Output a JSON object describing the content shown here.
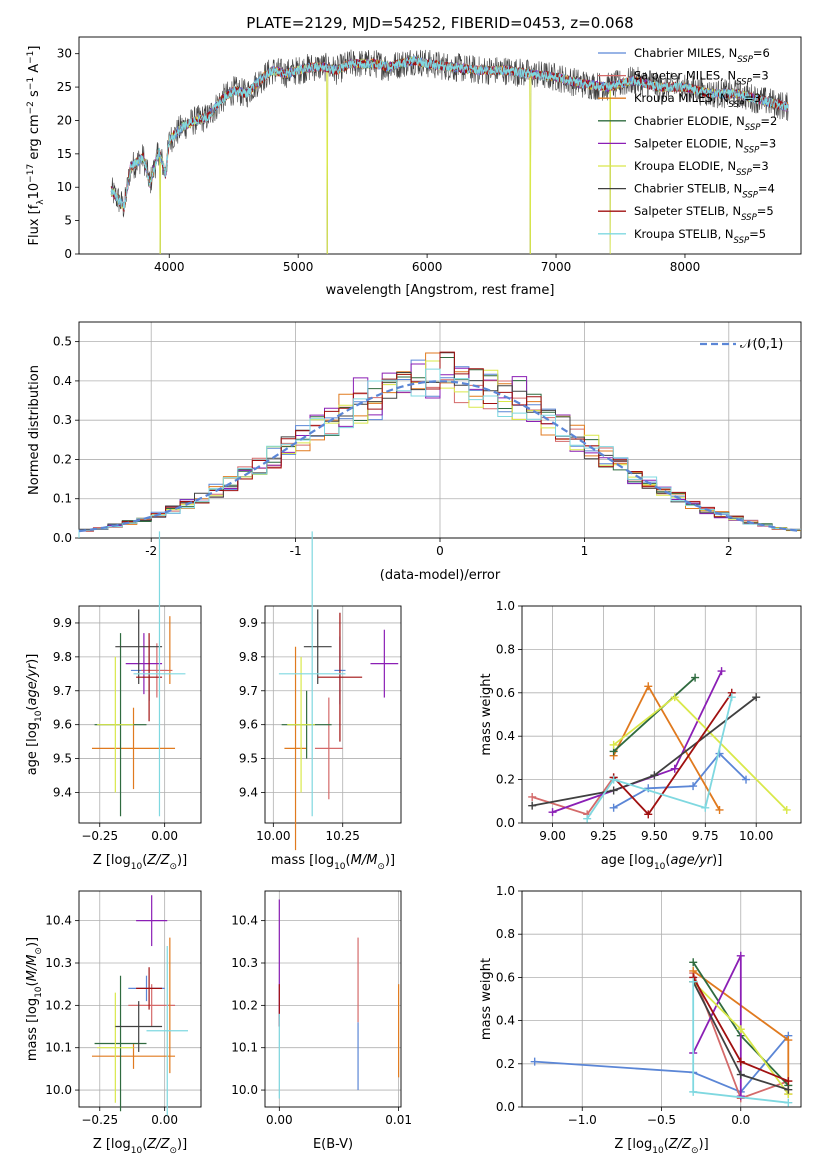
{
  "figure_title": "PLATE=2129, MJD=54252, FIBERID=0453, z=0.068",
  "colors": {
    "chabrier_miles": "#5b86d6",
    "salpeter_miles": "#d46a6a",
    "kroupa_miles": "#e07a1f",
    "chabrier_elodie": "#2f6b3f",
    "salpeter_elodie": "#8b1fb5",
    "kroupa_elodie": "#d9e84a",
    "chabrier_stelib": "#404040",
    "salpeter_stelib": "#a01010",
    "kroupa_stelib": "#7fd8e0",
    "normal_curve": "#5b86d6",
    "grid": "#b0b0b0"
  },
  "chart_data": [
    {
      "id": "spectrum",
      "type": "line",
      "title": "PLATE=2129, MJD=54252, FIBERID=0453, z=0.068",
      "xlabel": "wavelength [Angstrom, rest frame]",
      "ylabel": "Flux [f_λ10^-17 erg cm^-2 s^-1 A^-1]",
      "xlim": [
        3300,
        8900
      ],
      "ylim": [
        0,
        32.5
      ],
      "xticks": [
        4000,
        5000,
        6000,
        7000,
        8000
      ],
      "yticks": [
        0,
        5,
        10,
        15,
        20,
        25,
        30
      ],
      "grid": false,
      "legend_position": "top-right",
      "legend": [
        "Chabrier MILES, N_SSP=6",
        "Salpeter MILES, N_SSP=3",
        "Kroupa MILES, N_SSP=3",
        "Chabrier ELODIE, N_SSP=2",
        "Salpeter ELODIE, N_SSP=3",
        "Kroupa ELODIE, N_SSP=3",
        "Chabrier STELIB, N_SSP=4",
        "Salpeter STELIB, N_SSP=5",
        "Kroupa STELIB, N_SSP=5"
      ],
      "continuum": {
        "x": [
          3550,
          3650,
          3700,
          3800,
          3850,
          3920,
          3970,
          4000,
          4100,
          4200,
          4300,
          4400,
          4500,
          4600,
          4700,
          4800,
          4900,
          5000,
          5100,
          5200,
          5300,
          5400,
          5500,
          5600,
          5700,
          5800,
          5900,
          6000,
          6200,
          6400,
          6600,
          6800,
          7000,
          7200,
          7400,
          7600,
          7800,
          8000,
          8200,
          8400,
          8600,
          8800
        ],
        "y": [
          9.5,
          7.0,
          13.0,
          14.5,
          10.5,
          15.5,
          12.0,
          17.0,
          19.0,
          20.0,
          20.5,
          23.0,
          24.5,
          24.0,
          26.0,
          27.5,
          27.0,
          27.5,
          28.0,
          28.0,
          27.5,
          28.5,
          28.5,
          28.5,
          28.0,
          28.5,
          29.0,
          28.5,
          28.0,
          27.5,
          27.5,
          27.0,
          26.5,
          25.5,
          25.0,
          26.0,
          25.0,
          25.0,
          24.0,
          24.0,
          23.0,
          22.0
        ]
      },
      "absorption_dips": [
        {
          "x": 3930,
          "y": 0
        },
        {
          "x": 5225,
          "y": 0
        },
        {
          "x": 6800,
          "y": 0
        },
        {
          "x": 7420,
          "y": 0
        }
      ]
    },
    {
      "id": "residuals",
      "type": "bar",
      "xlabel": "(data-model)/error",
      "ylabel": "Normed distribution",
      "xlim": [
        -2.5,
        2.5
      ],
      "ylim": [
        0,
        0.55
      ],
      "xticks": [
        -2,
        -1,
        0,
        1,
        2
      ],
      "yticks": [
        0.0,
        0.1,
        0.2,
        0.3,
        0.4,
        0.5
      ],
      "grid": true,
      "legend_position": "top-right",
      "legend": [
        "𝒩(0,1)"
      ],
      "bin_width": 0.1,
      "bin_start": -2.5,
      "series": [
        {
          "name": "Chabrier MILES",
          "color_key": "chabrier_miles"
        },
        {
          "name": "Salpeter MILES",
          "color_key": "salpeter_miles"
        },
        {
          "name": "Kroupa MILES",
          "color_key": "kroupa_miles"
        },
        {
          "name": "Chabrier ELODIE",
          "color_key": "chabrier_elodie"
        },
        {
          "name": "Salpeter ELODIE",
          "color_key": "salpeter_elodie"
        },
        {
          "name": "Kroupa ELODIE",
          "color_key": "kroupa_elodie"
        },
        {
          "name": "Chabrier STELIB",
          "color_key": "chabrier_stelib"
        },
        {
          "name": "Salpeter STELIB",
          "color_key": "salpeter_stelib"
        },
        {
          "name": "Kroupa STELIB",
          "color_key": "kroupa_stelib"
        }
      ]
    },
    {
      "id": "age_vs_Z",
      "type": "scatter",
      "xlabel": "Z [log10(Z/Z☉)]",
      "ylabel": "age [log10(age/yr)]",
      "xlim": [
        -0.33,
        0.14
      ],
      "ylim": [
        9.31,
        9.95
      ],
      "xticks": [
        -0.25,
        0.0
      ],
      "xtick_labels": [
        "−0.25",
        "0.00"
      ],
      "yticks": [
        9.4,
        9.5,
        9.6,
        9.7,
        9.8,
        9.9
      ],
      "grid": true,
      "points": [
        {
          "color_key": "chabrier_miles",
          "x": -0.06,
          "y": 9.76,
          "xerr": 0.07,
          "yerr": 0.09
        },
        {
          "color_key": "salpeter_miles",
          "x": -0.03,
          "y": 9.76,
          "xerr": 0.06,
          "yerr": 0.08
        },
        {
          "color_key": "kroupa_miles",
          "x": -0.12,
          "y": 9.53,
          "xerr": 0.16,
          "yerr": 0.12
        },
        {
          "color_key": "kroupa_miles",
          "x": 0.02,
          "y": 9.82,
          "xerr": 0.0,
          "yerr": 0.1
        },
        {
          "color_key": "chabrier_elodie",
          "x": -0.17,
          "y": 9.6,
          "xerr": 0.1,
          "yerr": 0.27
        },
        {
          "color_key": "salpeter_elodie",
          "x": -0.08,
          "y": 9.78,
          "xerr": 0.07,
          "yerr": 0.09
        },
        {
          "color_key": "kroupa_elodie",
          "x": -0.19,
          "y": 9.6,
          "xerr": 0.07,
          "yerr": 0.2
        },
        {
          "color_key": "chabrier_stelib",
          "x": -0.1,
          "y": 9.83,
          "xerr": 0.09,
          "yerr": 0.11
        },
        {
          "color_key": "salpeter_stelib",
          "x": -0.06,
          "y": 9.74,
          "xerr": 0.05,
          "yerr": 0.13
        },
        {
          "color_key": "kroupa_stelib",
          "x": -0.02,
          "y": 9.75,
          "xerr": 0.1,
          "yerr": 0.42
        }
      ]
    },
    {
      "id": "age_vs_mass",
      "type": "scatter",
      "xlabel": "mass [log10(M/M☉)]",
      "ylabel": "",
      "xlim": [
        9.97,
        10.46
      ],
      "ylim": [
        9.31,
        9.95
      ],
      "xticks": [
        10.0,
        10.25
      ],
      "xtick_labels": [
        "10.00",
        "10.25"
      ],
      "yticks": [
        9.4,
        9.5,
        9.6,
        9.7,
        9.8,
        9.9
      ],
      "grid": true,
      "points": [
        {
          "color_key": "chabrier_miles",
          "x": 10.24,
          "y": 9.76,
          "xerr": 0.02,
          "yerr": 0.1
        },
        {
          "color_key": "salpeter_miles",
          "x": 10.2,
          "y": 9.53,
          "xerr": 0.05,
          "yerr": 0.15
        },
        {
          "color_key": "kroupa_miles",
          "x": 10.08,
          "y": 9.53,
          "xerr": 0.04,
          "yerr": 0.3
        },
        {
          "color_key": "chabrier_elodie",
          "x": 10.12,
          "y": 9.6,
          "xerr": 0.09,
          "yerr": 0.1
        },
        {
          "color_key": "salpeter_elodie",
          "x": 10.4,
          "y": 9.78,
          "xerr": 0.05,
          "yerr": 0.1
        },
        {
          "color_key": "kroupa_elodie",
          "x": 10.1,
          "y": 9.6,
          "xerr": 0.05,
          "yerr": 0.2
        },
        {
          "color_key": "chabrier_stelib",
          "x": 10.16,
          "y": 9.83,
          "xerr": 0.05,
          "yerr": 0.11
        },
        {
          "color_key": "salpeter_stelib",
          "x": 10.24,
          "y": 9.74,
          "xerr": 0.08,
          "yerr": 0.19
        },
        {
          "color_key": "kroupa_stelib",
          "x": 10.14,
          "y": 9.75,
          "xerr": 0.12,
          "yerr": 0.42
        }
      ]
    },
    {
      "id": "weight_vs_age",
      "type": "line",
      "xlabel": "age [log10(age/yr)]",
      "ylabel": "mass weight",
      "xlim": [
        8.85,
        10.22
      ],
      "ylim": [
        0,
        1
      ],
      "xticks": [
        9.0,
        9.25,
        9.5,
        9.75,
        10.0
      ],
      "xtick_labels": [
        "9.00",
        "9.25",
        "9.50",
        "9.75",
        "10.00"
      ],
      "yticks": [
        0.0,
        0.2,
        0.4,
        0.6,
        0.8,
        1.0
      ],
      "grid": true,
      "series": [
        {
          "color_key": "chabrier_miles",
          "points": [
            [
              9.95,
              0.2
            ],
            [
              9.82,
              0.32
            ],
            [
              9.69,
              0.17
            ],
            [
              9.47,
              0.16
            ],
            [
              9.3,
              0.07
            ]
          ]
        },
        {
          "color_key": "salpeter_miles",
          "points": [
            [
              9.3,
              0.21
            ],
            [
              9.17,
              0.04
            ],
            [
              8.9,
              0.12
            ]
          ]
        },
        {
          "color_key": "kroupa_miles",
          "points": [
            [
              9.3,
              0.31
            ],
            [
              9.47,
              0.63
            ],
            [
              9.82,
              0.06
            ]
          ]
        },
        {
          "color_key": "chabrier_elodie",
          "points": [
            [
              9.3,
              0.33
            ],
            [
              9.7,
              0.67
            ]
          ]
        },
        {
          "color_key": "salpeter_elodie",
          "points": [
            [
              9.0,
              0.05
            ],
            [
              9.6,
              0.25
            ],
            [
              9.83,
              0.7
            ]
          ]
        },
        {
          "color_key": "kroupa_elodie",
          "points": [
            [
              9.3,
              0.36
            ],
            [
              9.6,
              0.58
            ],
            [
              10.15,
              0.06
            ]
          ]
        },
        {
          "color_key": "chabrier_stelib",
          "points": [
            [
              8.9,
              0.08
            ],
            [
              9.3,
              0.15
            ],
            [
              9.5,
              0.22
            ],
            [
              10.0,
              0.58
            ]
          ]
        },
        {
          "color_key": "salpeter_stelib",
          "points": [
            [
              9.3,
              0.21
            ],
            [
              9.47,
              0.04
            ],
            [
              9.88,
              0.6
            ]
          ]
        },
        {
          "color_key": "kroupa_stelib",
          "points": [
            [
              9.17,
              0.02
            ],
            [
              9.3,
              0.2
            ],
            [
              9.75,
              0.07
            ],
            [
              9.88,
              0.58
            ]
          ]
        }
      ]
    },
    {
      "id": "mass_vs_Z",
      "type": "scatter",
      "xlabel": "Z [log10(Z/Z☉)]",
      "ylabel": "mass [log10(M/M☉)]",
      "xlim": [
        -0.33,
        0.14
      ],
      "ylim": [
        9.96,
        10.47
      ],
      "xticks": [
        -0.25,
        0.0
      ],
      "xtick_labels": [
        "−0.25",
        "0.00"
      ],
      "yticks": [
        10.0,
        10.1,
        10.2,
        10.3,
        10.4
      ],
      "grid": true,
      "points": [
        {
          "color_key": "chabrier_miles",
          "x": -0.07,
          "y": 10.24,
          "xerr": 0.07,
          "yerr": 0.03
        },
        {
          "color_key": "salpeter_miles",
          "x": -0.05,
          "y": 10.2,
          "xerr": 0.09,
          "yerr": 0.05
        },
        {
          "color_key": "kroupa_miles",
          "x": -0.12,
          "y": 10.08,
          "xerr": 0.16,
          "yerr": 0.03
        },
        {
          "color_key": "kroupa_miles",
          "x": 0.02,
          "y": 10.2,
          "xerr": 0.0,
          "yerr": 0.16
        },
        {
          "color_key": "chabrier_elodie",
          "x": -0.17,
          "y": 10.11,
          "xerr": 0.1,
          "yerr": 0.16
        },
        {
          "color_key": "salpeter_elodie",
          "x": -0.05,
          "y": 10.4,
          "xerr": 0.06,
          "yerr": 0.06
        },
        {
          "color_key": "kroupa_elodie",
          "x": -0.19,
          "y": 10.1,
          "xerr": 0.07,
          "yerr": 0.13
        },
        {
          "color_key": "chabrier_stelib",
          "x": -0.1,
          "y": 10.15,
          "xerr": 0.09,
          "yerr": 0.06
        },
        {
          "color_key": "salpeter_stelib",
          "x": -0.06,
          "y": 10.24,
          "xerr": 0.05,
          "yerr": 0.05
        },
        {
          "color_key": "kroupa_stelib",
          "x": 0.01,
          "y": 10.14,
          "xerr": 0.08,
          "yerr": 0.2
        }
      ]
    },
    {
      "id": "mass_vs_ebv",
      "type": "scatter",
      "xlabel": "E(B-V)",
      "ylabel": "",
      "xlim": [
        -0.0012,
        0.0102
      ],
      "ylim": [
        9.96,
        10.47
      ],
      "xticks": [
        0.0,
        0.01
      ],
      "xtick_labels": [
        "0.00",
        "0.01"
      ],
      "yticks": [
        10.0,
        10.1,
        10.2,
        10.3,
        10.4
      ],
      "grid": true,
      "points": [
        {
          "color_key": "salpeter_elodie",
          "x": 0.0,
          "y": 10.3,
          "xerr": 0,
          "yerr": 0.15
        },
        {
          "color_key": "salpeter_stelib",
          "x": 0.0,
          "y": 10.2,
          "xerr": 0,
          "yerr": 0.05
        },
        {
          "color_key": "kroupa_stelib",
          "x": 0.0,
          "y": 10.08,
          "xerr": 0,
          "yerr": 0.1
        },
        {
          "color_key": "salpeter_miles",
          "x": 0.0066,
          "y": 10.26,
          "xerr": 0,
          "yerr": 0.1
        },
        {
          "color_key": "chabrier_miles",
          "x": 0.0066,
          "y": 10.08,
          "xerr": 0,
          "yerr": 0.08
        },
        {
          "color_key": "kroupa_miles",
          "x": 0.01,
          "y": 10.14,
          "xerr": 0,
          "yerr": 0.11
        }
      ]
    },
    {
      "id": "weight_vs_Z",
      "type": "line",
      "xlabel": "Z [log10(Z/Z☉)]",
      "ylabel": "mass weight",
      "xlim": [
        -1.38,
        0.38
      ],
      "ylim": [
        0,
        1
      ],
      "xticks": [
        -1.0,
        -0.5,
        0.0
      ],
      "xtick_labels": [
        "−1.0",
        "−0.5",
        "0.0"
      ],
      "yticks": [
        0.0,
        0.2,
        0.4,
        0.6,
        0.8,
        1.0
      ],
      "grid": true,
      "series": [
        {
          "color_key": "chabrier_miles",
          "points": [
            [
              -1.3,
              0.21
            ],
            [
              -0.3,
              0.16
            ],
            [
              0.0,
              0.07
            ],
            [
              0.3,
              0.33
            ]
          ]
        },
        {
          "color_key": "salpeter_miles",
          "points": [
            [
              0.3,
              0.12
            ],
            [
              0.0,
              0.04
            ],
            [
              -0.3,
              0.62
            ]
          ]
        },
        {
          "color_key": "kroupa_miles",
          "points": [
            [
              -0.3,
              0.63
            ],
            [
              0.3,
              0.31
            ],
            [
              0.3,
              0.06
            ]
          ]
        },
        {
          "color_key": "chabrier_elodie",
          "points": [
            [
              -0.3,
              0.67
            ],
            [
              0.0,
              0.33
            ],
            [
              0.3,
              0.1
            ]
          ]
        },
        {
          "color_key": "salpeter_elodie",
          "points": [
            [
              -0.3,
              0.25
            ],
            [
              0.0,
              0.7
            ],
            [
              0.0,
              0.05
            ]
          ]
        },
        {
          "color_key": "kroupa_elodie",
          "points": [
            [
              -0.3,
              0.58
            ],
            [
              0.0,
              0.36
            ],
            [
              0.3,
              0.06
            ]
          ]
        },
        {
          "color_key": "chabrier_stelib",
          "points": [
            [
              -0.3,
              0.58
            ],
            [
              0.0,
              0.15
            ],
            [
              0.3,
              0.08
            ]
          ]
        },
        {
          "color_key": "salpeter_stelib",
          "points": [
            [
              -0.3,
              0.6
            ],
            [
              0.0,
              0.21
            ],
            [
              0.3,
              0.12
            ]
          ]
        },
        {
          "color_key": "kroupa_stelib",
          "points": [
            [
              -0.3,
              0.58
            ],
            [
              -0.3,
              0.07
            ],
            [
              0.3,
              0.02
            ]
          ]
        }
      ]
    }
  ]
}
